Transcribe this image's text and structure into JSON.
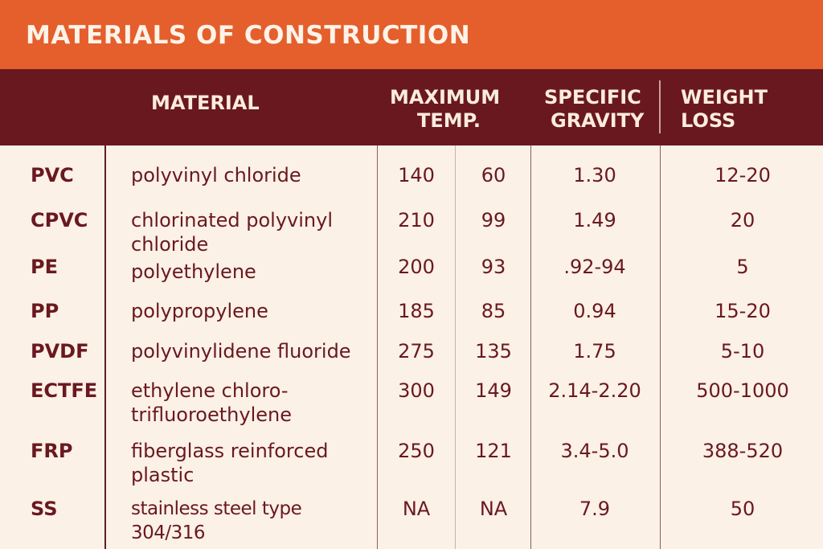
{
  "title": "MATERIALS OF CONSTRUCTION",
  "header": {
    "material": "MATERIAL",
    "max_temp_line1": "MAXIMUM",
    "max_temp_line2": "TEMP.",
    "specific_gravity_line1": "SPECIFIC",
    "specific_gravity_line2": "GRAVITY",
    "weight_loss_line1": "WEIGHT",
    "weight_loss_line2": "LOSS"
  },
  "rows": [
    {
      "abbr": "PVC",
      "material": "polyvinyl chloride",
      "temp_f": "140",
      "temp_c": "60",
      "specific_gravity": "1.30",
      "weight_loss": "12-20"
    },
    {
      "abbr": "CPVC",
      "material": "chlorinated polyvinyl chloride",
      "temp_f": "210",
      "temp_c": "99",
      "specific_gravity": "1.49",
      "weight_loss": "20"
    },
    {
      "abbr": "PE",
      "material": "polyethylene",
      "temp_f": "200",
      "temp_c": "93",
      "specific_gravity": ".92-94",
      "weight_loss": "5"
    },
    {
      "abbr": "PP",
      "material": "polypropylene",
      "temp_f": "185",
      "temp_c": "85",
      "specific_gravity": "0.94",
      "weight_loss": "15-20"
    },
    {
      "abbr": "PVDF",
      "material": "polyvinylidene fluoride",
      "temp_f": "275",
      "temp_c": "135",
      "specific_gravity": "1.75",
      "weight_loss": "5-10"
    },
    {
      "abbr": "ECTFE",
      "material": "ethylene chloro-trifluoroethylene",
      "temp_f": "300",
      "temp_c": "149",
      "specific_gravity": "2.14-2.20",
      "weight_loss": "500-1000"
    },
    {
      "abbr": "FRP",
      "material": "fiberglass reinforced plastic",
      "temp_f": "250",
      "temp_c": "121",
      "specific_gravity": "3.4-5.0",
      "weight_loss": "388-520"
    },
    {
      "abbr": "SS",
      "material": "stainless steel type 304/316",
      "temp_f": "NA",
      "temp_c": "NA",
      "specific_gravity": "7.9",
      "weight_loss": "50"
    }
  ],
  "colors": {
    "title_bar": "#e45f2c",
    "header_bar": "#6a1820",
    "background": "#fbf1e6",
    "text": "#6a1820"
  }
}
